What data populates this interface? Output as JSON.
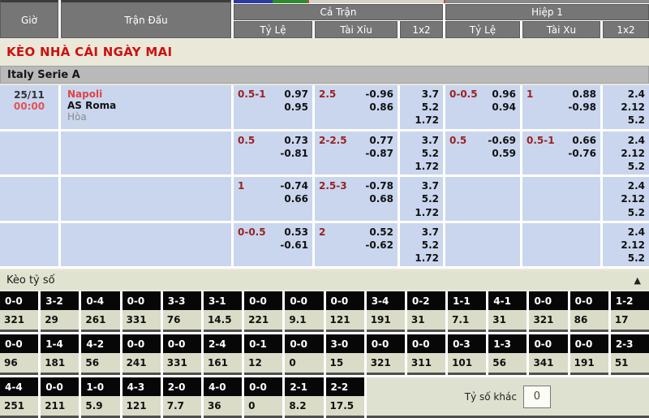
{
  "colors": {
    "accent_red": "#cc1111",
    "odds_cell_bg": "#c9d6ee",
    "header_bg": "#767676",
    "score_header_bg": "#070707",
    "strip_blue": "#2b3aa0",
    "strip_green": "#2e8b2e",
    "strip_red": "#cc4444",
    "strip_beige": "#d6d3c6"
  },
  "header": {
    "time": "Giờ",
    "match": "Trận Đấu",
    "full_match": "Cả Trận",
    "first_half": "Hiệp 1",
    "ft_ratio": "Tỷ Lệ",
    "ft_ou": "Tài Xỉu",
    "ft_1x2": "1x2",
    "h1_ratio": "Tỷ Lệ",
    "h1_ou": "Tài Xu",
    "h1_1x2": "1x2"
  },
  "title": "KÈO NHÀ CÁI NGÀY MAI",
  "league": "Italy Serie A",
  "match": {
    "date": "25/11",
    "time": "00:00",
    "home": "Napoli",
    "away": "AS Roma",
    "draw": "Hòa"
  },
  "odds_rows": [
    {
      "ft_hdp": {
        "line": "0.5-1",
        "top": "0.97",
        "bottom": "0.95"
      },
      "ft_ou": {
        "line": "2.5",
        "top": "-0.96",
        "bottom": "0.86"
      },
      "ft_1x2": [
        "3.7",
        "5.2",
        "1.72"
      ],
      "h1_hdp": {
        "line": "0-0.5",
        "top": "0.96",
        "bottom": "0.94"
      },
      "h1_ou": {
        "line": "1",
        "top": "0.88",
        "bottom": "-0.98"
      },
      "h1_1x2": [
        "2.4",
        "2.12",
        "5.2"
      ]
    },
    {
      "ft_hdp": {
        "line": "0.5",
        "top": "0.73",
        "bottom": "-0.81"
      },
      "ft_ou": {
        "line": "2-2.5",
        "top": "0.77",
        "bottom": "-0.87"
      },
      "ft_1x2": [
        "3.7",
        "5.2",
        "1.72"
      ],
      "h1_hdp": {
        "line": "0.5",
        "top": "-0.69",
        "bottom": "0.59"
      },
      "h1_ou": {
        "line": "0.5-1",
        "top": "0.66",
        "bottom": "-0.76"
      },
      "h1_1x2": [
        "2.4",
        "2.12",
        "5.2"
      ]
    },
    {
      "ft_hdp": {
        "line": "1",
        "top": "-0.74",
        "bottom": "0.66"
      },
      "ft_ou": {
        "line": "2.5-3",
        "top": "-0.78",
        "bottom": "0.68"
      },
      "ft_1x2": [
        "3.7",
        "5.2",
        "1.72"
      ],
      "h1_hdp": {
        "line": "",
        "top": "",
        "bottom": ""
      },
      "h1_ou": {
        "line": "",
        "top": "",
        "bottom": ""
      },
      "h1_1x2": [
        "2.4",
        "2.12",
        "5.2"
      ]
    },
    {
      "ft_hdp": {
        "line": "0-0.5",
        "top": "0.53",
        "bottom": "-0.61"
      },
      "ft_ou": {
        "line": "2",
        "top": "0.52",
        "bottom": "-0.62"
      },
      "ft_1x2": [
        "3.7",
        "5.2",
        "1.72"
      ],
      "h1_hdp": {
        "line": "",
        "top": "",
        "bottom": ""
      },
      "h1_ou": {
        "line": "",
        "top": "",
        "bottom": ""
      },
      "h1_1x2": [
        "2.4",
        "2.12",
        "5.2"
      ]
    }
  ],
  "score_section": {
    "title": "Kèo tỷ số",
    "collapse_icon": "▲"
  },
  "score_rows": [
    [
      {
        "score": "0-0",
        "odds": "321"
      },
      {
        "score": "3-2",
        "odds": "29"
      },
      {
        "score": "0-4",
        "odds": "261"
      },
      {
        "score": "0-0",
        "odds": "331"
      },
      {
        "score": "3-3",
        "odds": "76"
      },
      {
        "score": "3-1",
        "odds": "14.5"
      },
      {
        "score": "0-0",
        "odds": "221"
      },
      {
        "score": "0-0",
        "odds": "9.1"
      },
      {
        "score": "0-0",
        "odds": "121"
      },
      {
        "score": "3-4",
        "odds": "191"
      },
      {
        "score": "0-2",
        "odds": "31"
      },
      {
        "score": "1-1",
        "odds": "7.1"
      },
      {
        "score": "4-1",
        "odds": "31"
      },
      {
        "score": "0-0",
        "odds": "321"
      },
      {
        "score": "0-0",
        "odds": "86"
      },
      {
        "score": "1-2",
        "odds": "17"
      }
    ],
    [
      {
        "score": "0-0",
        "odds": "96"
      },
      {
        "score": "1-4",
        "odds": "181"
      },
      {
        "score": "4-2",
        "odds": "56"
      },
      {
        "score": "0-0",
        "odds": "241"
      },
      {
        "score": "0-0",
        "odds": "331"
      },
      {
        "score": "2-4",
        "odds": "161"
      },
      {
        "score": "0-1",
        "odds": "12"
      },
      {
        "score": "0-0",
        "odds": "0"
      },
      {
        "score": "3-0",
        "odds": "15"
      },
      {
        "score": "0-0",
        "odds": "321"
      },
      {
        "score": "0-0",
        "odds": "311"
      },
      {
        "score": "0-3",
        "odds": "101"
      },
      {
        "score": "1-3",
        "odds": "56"
      },
      {
        "score": "0-0",
        "odds": "341"
      },
      {
        "score": "0-0",
        "odds": "191"
      },
      {
        "score": "2-3",
        "odds": "51"
      }
    ],
    [
      {
        "score": "4-4",
        "odds": "251"
      },
      {
        "score": "0-0",
        "odds": "211"
      },
      {
        "score": "1-0",
        "odds": "5.9"
      },
      {
        "score": "4-3",
        "odds": "121"
      },
      {
        "score": "2-0",
        "odds": "7.7"
      },
      {
        "score": "4-0",
        "odds": "36"
      },
      {
        "score": "0-0",
        "odds": "0"
      },
      {
        "score": "2-1",
        "odds": "8.2"
      },
      {
        "score": "2-2",
        "odds": "17.5"
      }
    ]
  ],
  "other_score": {
    "label": "Tỷ số khác",
    "value": "0"
  }
}
